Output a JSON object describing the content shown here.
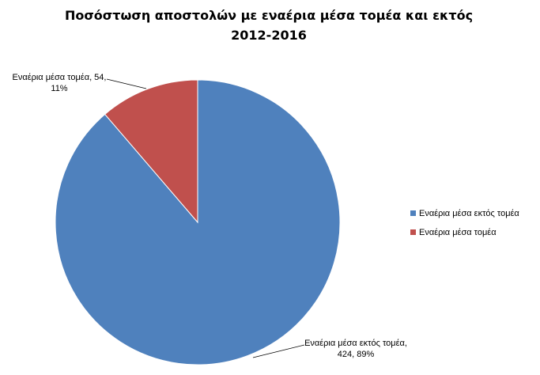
{
  "chart_data": {
    "type": "pie",
    "title": [
      "Ποσόστωση  αποστολών  με εναέρια μέσα τομέα και εκτός",
      "2012-2016"
    ],
    "categories": [
      "Εναέρια μέσα εκτός τομέα",
      "Εναέρια μέσα τομέα"
    ],
    "values": [
      424,
      54
    ],
    "value_labels": [
      "Εναέρια μέσα εκτός τομέα, 424, 89%",
      "Εναέρια μέσα τομέα, 54, 11%"
    ],
    "colors": [
      "#4f81bd",
      "#c0504d"
    ],
    "legend": "right"
  }
}
